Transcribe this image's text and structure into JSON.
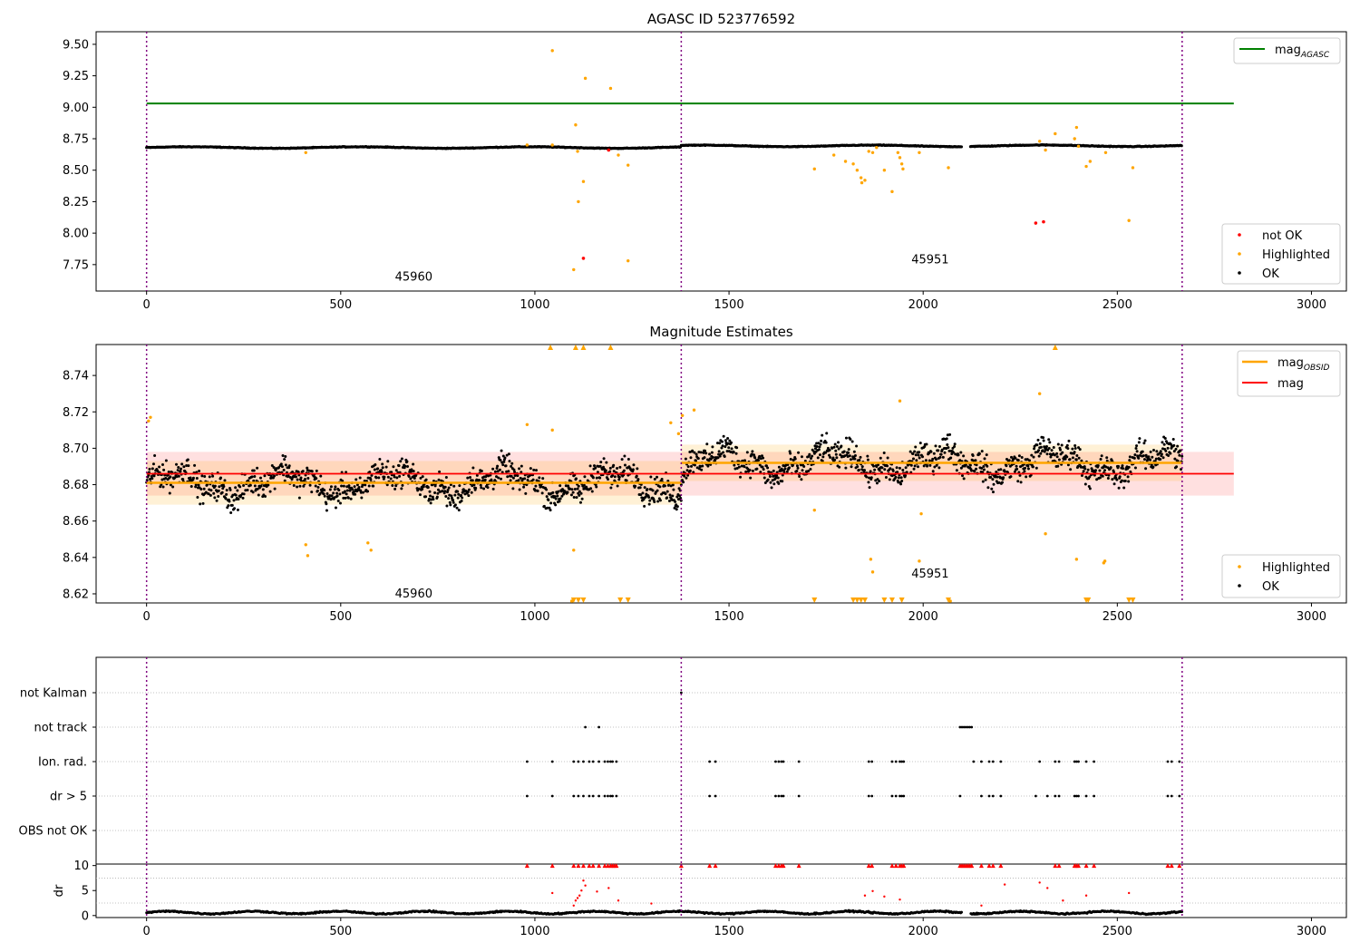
{
  "chart_data": [
    {
      "type": "scatter",
      "title": "AGASC ID 523776592",
      "xlabel": "",
      "ylabel": "",
      "xlim": [
        -130,
        3090
      ],
      "ylim": [
        7.54,
        9.6
      ],
      "x_ticks": [
        0,
        500,
        1000,
        1500,
        2000,
        2500,
        3000
      ],
      "y_ticks": [
        7.75,
        8.0,
        8.25,
        8.5,
        8.75,
        9.0,
        9.25,
        9.5
      ],
      "y_tick_labels": [
        "7.75",
        "8.00",
        "8.25",
        "8.50",
        "8.75",
        "9.00",
        "9.25",
        "9.50"
      ],
      "grid": false,
      "obs_boundaries": [
        0,
        1377,
        2667
      ],
      "obs_labels": [
        {
          "text": "45960",
          "x": 688,
          "y": 7.65
        },
        {
          "text": "45951",
          "x": 2018,
          "y": 7.79
        }
      ],
      "lines": [
        {
          "name": "mag_AGASC",
          "color": "#008000",
          "x": [
            0,
            2800
          ],
          "y": [
            9.03,
            9.03
          ]
        }
      ],
      "ok_baseline": {
        "segments": [
          [
            0,
            1377,
            8.68
          ],
          [
            1377,
            2100,
            8.693
          ],
          [
            2122,
            2667,
            8.694
          ]
        ],
        "spread": 0.012
      },
      "highlighted": {
        "x": [
          1045,
          1100,
          1105,
          1110,
          1112,
          1125,
          1130,
          1195,
          1215,
          1240,
          1045,
          1240,
          1720,
          1770,
          1800,
          1820,
          1830,
          1840,
          1842,
          1850,
          1860,
          1870,
          1880,
          1900,
          1920,
          1935,
          1940,
          1945,
          1948,
          1990,
          2065,
          2300,
          2315,
          2340,
          2390,
          2395,
          2400,
          2420,
          2430,
          2470,
          2530,
          2540,
          410,
          980
        ],
        "y": [
          9.45,
          7.71,
          8.86,
          8.65,
          8.25,
          8.41,
          9.23,
          9.15,
          8.62,
          7.78,
          8.7,
          8.54,
          8.51,
          8.62,
          8.57,
          8.55,
          8.5,
          8.44,
          8.4,
          8.42,
          8.65,
          8.64,
          8.68,
          8.5,
          8.33,
          8.64,
          8.6,
          8.55,
          8.51,
          8.64,
          8.52,
          8.73,
          8.66,
          8.79,
          8.75,
          8.84,
          8.69,
          8.53,
          8.57,
          8.64,
          8.1,
          8.52,
          8.64,
          8.7
        ]
      },
      "not_ok": {
        "x": [
          1125,
          1190,
          2290,
          2310
        ],
        "y": [
          7.8,
          8.66,
          8.08,
          8.09
        ]
      },
      "legend": {
        "position": "lower right",
        "entries": [
          "not OK",
          "Highlighted",
          "OK"
        ],
        "colors": [
          "#ff0000",
          "#ffa500",
          "#000000"
        ]
      },
      "legend2": {
        "position": "upper right",
        "entries": [
          "mag_AGASC"
        ]
      }
    },
    {
      "type": "scatter",
      "title": "Magnitude Estimates",
      "xlabel": "",
      "ylabel": "",
      "xlim": [
        -130,
        3090
      ],
      "ylim": [
        8.615,
        8.757
      ],
      "x_ticks": [
        0,
        500,
        1000,
        1500,
        2000,
        2500,
        3000
      ],
      "y_ticks": [
        8.62,
        8.64,
        8.66,
        8.68,
        8.7,
        8.72,
        8.74
      ],
      "y_tick_labels": [
        "8.62",
        "8.64",
        "8.66",
        "8.68",
        "8.70",
        "8.72",
        "8.74"
      ],
      "grid": false,
      "obs_boundaries": [
        0,
        1377,
        2667
      ],
      "obs_labels": [
        {
          "text": "45960",
          "x": 688,
          "y": 8.62
        },
        {
          "text": "45951",
          "x": 2018,
          "y": 8.631
        }
      ],
      "mag": {
        "name": "mag",
        "value": 8.686,
        "band": [
          8.674,
          8.698
        ],
        "x": [
          0,
          2800
        ],
        "color": "#ff0000"
      },
      "mag_obsid": [
        {
          "name": "mag_OBSID",
          "x": [
            0,
            1377
          ],
          "value": 8.681,
          "band": [
            8.669,
            8.693
          ]
        },
        {
          "name": "mag_OBSID",
          "x": [
            1377,
            2667
          ],
          "value": 8.692,
          "band": [
            8.682,
            8.702
          ]
        }
      ],
      "highlighted": {
        "x": [
          5,
          10,
          410,
          415,
          570,
          578,
          980,
          1040,
          1045,
          1095,
          1100,
          1105,
          1125,
          1195,
          1350,
          1370,
          1380,
          1410,
          1720,
          1865,
          1870,
          1940,
          1990,
          1995,
          2070,
          2300,
          2315,
          2340,
          2395,
          2465,
          2468
        ],
        "y": [
          8.715,
          8.717,
          8.647,
          8.641,
          8.648,
          8.644,
          8.713,
          8.756,
          8.71,
          8.616,
          8.644,
          8.756,
          8.756,
          8.756,
          8.714,
          8.708,
          8.718,
          8.721,
          8.666,
          8.639,
          8.632,
          8.726,
          8.638,
          8.664,
          8.616,
          8.73,
          8.653,
          8.756,
          8.639,
          8.637,
          8.638
        ]
      },
      "highlighted_clipped": {
        "x": [
          1100,
          1112,
          1125,
          1220,
          1240,
          1720,
          1820,
          1830,
          1840,
          1850,
          1900,
          1920,
          1945,
          2065,
          2420,
          2425,
          2530,
          2540
        ],
        "y_edge": [
          "bottom",
          "bottom",
          "bottom",
          "bottom",
          "bottom",
          "bottom",
          "bottom",
          "bottom",
          "bottom",
          "bottom",
          "bottom",
          "bottom",
          "bottom",
          "bottom",
          "bottom",
          "bottom",
          "bottom",
          "bottom"
        ]
      },
      "legend": {
        "position": "lower right",
        "entries": [
          "Highlighted",
          "OK"
        ],
        "colors": [
          "#ffa500",
          "#000000"
        ]
      },
      "legend2": {
        "position": "upper right",
        "entries": [
          "mag_OBSID",
          "mag"
        ],
        "colors": [
          "#ffa500",
          "#ff0000"
        ]
      }
    },
    {
      "type": "scatter",
      "title": "",
      "xlabel": "",
      "ylabel": "",
      "xlim": [
        -130,
        3090
      ],
      "x_ticks": [
        0,
        500,
        1000,
        1500,
        2000,
        2500,
        3000
      ],
      "categories": [
        "not Kalman",
        "not track",
        "Ion. rad.",
        "dr > 5",
        "OBS not OK"
      ],
      "grid": true,
      "obs_boundaries": [
        0,
        1377,
        2667
      ],
      "flags": {
        "not Kalman": [
          1377
        ],
        "not track": [
          1130,
          1165,
          2095,
          2100,
          2105,
          2110,
          2115,
          2120,
          2125
        ],
        "Ion. rad.": [
          980,
          1045,
          1100,
          1112,
          1125,
          1140,
          1150,
          1165,
          1180,
          1188,
          1195,
          1200,
          1210,
          1450,
          1465,
          1620,
          1628,
          1635,
          1640,
          1680,
          1860,
          1868,
          1920,
          1930,
          1940,
          1945,
          1950,
          2130,
          2150,
          2170,
          2180,
          2200,
          2300,
          2340,
          2350,
          2390,
          2395,
          2400,
          2420,
          2440,
          2630,
          2640,
          2660
        ],
        "dr > 5": [
          980,
          1045,
          1100,
          1112,
          1125,
          1140,
          1150,
          1165,
          1180,
          1188,
          1195,
          1200,
          1210,
          1450,
          1465,
          1620,
          1628,
          1635,
          1640,
          1680,
          1860,
          1868,
          1920,
          1930,
          1940,
          1945,
          1950,
          2095,
          2150,
          2170,
          2180,
          2200,
          2290,
          2320,
          2340,
          2350,
          2390,
          2395,
          2400,
          2420,
          2440,
          2630,
          2640,
          2660
        ],
        "OBS not OK": []
      }
    },
    {
      "type": "scatter",
      "title": "",
      "xlabel": "",
      "ylabel": "dr",
      "xlim": [
        -130,
        3090
      ],
      "ylim": [
        -0.4,
        10.3
      ],
      "x_ticks": [
        0,
        500,
        1000,
        1500,
        2000,
        2500,
        3000
      ],
      "y_ticks": [
        0,
        5,
        10
      ],
      "y_tick_labels": [
        "0",
        "5",
        "10"
      ],
      "grid": true,
      "obs_boundaries": [
        0,
        1377,
        2667
      ],
      "dr_baseline": {
        "value": 0.6,
        "spread": 0.4,
        "gap": [
          2100,
          2122
        ]
      },
      "dr_outliers": {
        "x": [
          1045,
          1100,
          1105,
          1110,
          1115,
          1120,
          1125,
          1130,
          1160,
          1190,
          1215,
          1300,
          1850,
          1870,
          1900,
          1940,
          2150,
          2210,
          2300,
          2320,
          2360,
          2420,
          2530
        ],
        "y": [
          4.5,
          2.0,
          3.0,
          3.5,
          4.0,
          5.0,
          7.0,
          6.0,
          4.8,
          5.5,
          3.0,
          2.4,
          4.0,
          4.9,
          3.8,
          3.2,
          2.0,
          6.2,
          6.6,
          5.5,
          3.0,
          4.0,
          4.5
        ]
      },
      "dr_saturated": [
        980,
        1045,
        1100,
        1112,
        1125,
        1140,
        1150,
        1165,
        1180,
        1188,
        1195,
        1200,
        1205,
        1210,
        1377,
        1450,
        1465,
        1620,
        1628,
        1635,
        1640,
        1680,
        1860,
        1868,
        1920,
        1930,
        1940,
        1945,
        1950,
        2095,
        2100,
        2105,
        2110,
        2115,
        2120,
        2125,
        2150,
        2170,
        2180,
        2200,
        2340,
        2350,
        2390,
        2395,
        2400,
        2420,
        2440,
        2630,
        2640,
        2660
      ]
    }
  ]
}
